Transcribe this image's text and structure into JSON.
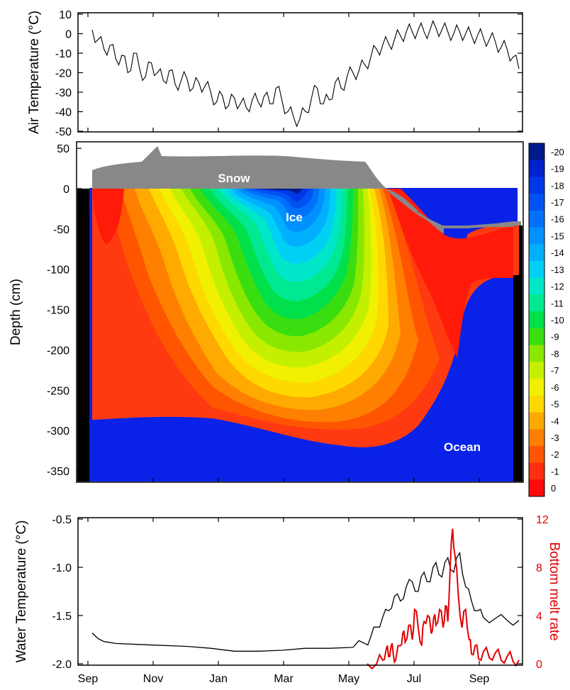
{
  "chart_data": [
    {
      "type": "line",
      "ylabel": "Air Temperature (°C)",
      "ylim": [
        -50,
        10
      ],
      "y_ticks": [
        "10",
        "0",
        "-10",
        "-20",
        "-30",
        "-40",
        "-50"
      ],
      "x_ticks": [
        "Sep",
        "Nov",
        "Jan",
        "Mar",
        "May",
        "Jul",
        "Sep"
      ],
      "series": [
        {
          "color": "#000000",
          "x": [
            0,
            5,
            10,
            15,
            20,
            25,
            30,
            35,
            40,
            45,
            50,
            55,
            60,
            65,
            70,
            75,
            80,
            85,
            90,
            95,
            100,
            105,
            110,
            115,
            120,
            125,
            130,
            135,
            140,
            145,
            150,
            155,
            160,
            165,
            170,
            175,
            180,
            185,
            190,
            195,
            200,
            205,
            210,
            215,
            220,
            225,
            230,
            235,
            240,
            245,
            250,
            255,
            260,
            265,
            270,
            275,
            280,
            285,
            290,
            295,
            300,
            305,
            310,
            315,
            320,
            325,
            330,
            335,
            340,
            345,
            350,
            355,
            360
          ],
          "y": [
            2,
            -3,
            -8,
            -6,
            -13,
            -11,
            -20,
            -10,
            -18,
            -22,
            -15,
            -20,
            -24,
            -19,
            -26,
            -24,
            -23,
            -28,
            -25,
            -27,
            -30,
            -35,
            -32,
            -37,
            -33,
            -36,
            -38,
            -34,
            -35,
            -32,
            -36,
            -28,
            -34,
            -40,
            -43,
            -44,
            -40,
            -33,
            -28,
            -36,
            -34,
            -25,
            -28,
            -22,
            -20,
            -19,
            -16,
            -12,
            -8,
            -6,
            -5,
            -3,
            -1,
            1,
            1,
            2,
            1,
            2,
            3,
            2,
            1,
            0,
            1,
            0,
            -1,
            -1,
            -2,
            -3,
            -4,
            -7,
            -8,
            -12,
            -18
          ]
        }
      ]
    },
    {
      "type": "heatmap",
      "ylabel": "Depth (cm)",
      "ylim": [
        -385,
        55
      ],
      "y_ticks": [
        "50",
        "0",
        "-50",
        "-100",
        "-150",
        "-200",
        "-250",
        "-300",
        "-350"
      ],
      "in_plot_labels": [
        "Snow",
        "Ice",
        "Ocean"
      ],
      "colorbar": {
        "labels": [
          "-20",
          "-19",
          "-18",
          "-17",
          "-16",
          "-15",
          "-14",
          "-13",
          "-12",
          "-11",
          "-10",
          "-9",
          "-8",
          "-7",
          "-6",
          "-5",
          "-4",
          "-3",
          "-2",
          "-1",
          "0"
        ],
        "colors": [
          "#001a8c",
          "#0022cc",
          "#0038e6",
          "#0052f2",
          "#0070fa",
          "#0090ff",
          "#00b0ff",
          "#00d0f4",
          "#00e6c8",
          "#00e890",
          "#00e04a",
          "#3ade10",
          "#8ae800",
          "#c4f000",
          "#f0f000",
          "#ffd800",
          "#ffaa00",
          "#ff8000",
          "#ff5500",
          "#ff2e10",
          "#ff0a0a"
        ]
      }
    },
    {
      "type": "line",
      "ylabel": "Water Temperature (°C)",
      "y2label": "Bottom melt rate",
      "ylim": [
        -2.0,
        -0.5
      ],
      "y2lim": [
        0,
        12
      ],
      "y_ticks": [
        "-0.5",
        "-1.0",
        "-1.5",
        "-2.0"
      ],
      "y2_ticks": [
        "12",
        "8",
        "4",
        "0"
      ],
      "x_ticks": [
        "Sep",
        "Nov",
        "Jan",
        "Mar",
        "May",
        "Jul",
        "Sep"
      ],
      "series": [
        {
          "axis": "left",
          "color": "#000000",
          "x": [
            0,
            5,
            10,
            20,
            40,
            60,
            80,
            100,
            120,
            140,
            160,
            180,
            200,
            220,
            230,
            235,
            240,
            245,
            250,
            255,
            260,
            265,
            270,
            275,
            280,
            285,
            290,
            295,
            300,
            305,
            310,
            315,
            320,
            325,
            330,
            340,
            350,
            360
          ],
          "y": [
            -1.68,
            -1.74,
            -1.77,
            -1.79,
            -1.8,
            -1.81,
            -1.82,
            -1.84,
            -1.87,
            -1.87,
            -1.86,
            -1.84,
            -1.84,
            -1.83,
            -1.79,
            -1.72,
            -1.62,
            -1.52,
            -1.45,
            -1.3,
            -1.35,
            -1.2,
            -1.15,
            -1.25,
            -1.05,
            -1.15,
            -0.95,
            -1.1,
            -0.9,
            -1.05,
            -0.85,
            -1.2,
            -1.35,
            -1.45,
            -1.52,
            -1.53,
            -1.55,
            -1.55
          ]
        },
        {
          "axis": "right",
          "color": "#e00000",
          "x": [
            232,
            240,
            245,
            248,
            250,
            252,
            254,
            256,
            260,
            262,
            264,
            267,
            270,
            272,
            275,
            278,
            280,
            283,
            286,
            288,
            290,
            293,
            296,
            298,
            300,
            302,
            304,
            306,
            309,
            312,
            315,
            318,
            320,
            323,
            326,
            330,
            335,
            340,
            345,
            350,
            355,
            360
          ],
          "y": [
            0,
            0,
            0.3,
            1.2,
            0.6,
            1.4,
            0.8,
            0.3,
            1.5,
            2.5,
            1.8,
            3.2,
            2.0,
            4.5,
            3.0,
            1.5,
            3.5,
            4.0,
            2.5,
            3.8,
            3.2,
            4.5,
            3.0,
            4.8,
            3.5,
            8.0,
            11.2,
            9.0,
            5.5,
            3.0,
            4.5,
            2.0,
            0.8,
            1.5,
            0.4,
            1.0,
            0.5,
            0.9,
            0.3,
            0.6,
            0.2,
            0.3
          ]
        }
      ]
    }
  ]
}
